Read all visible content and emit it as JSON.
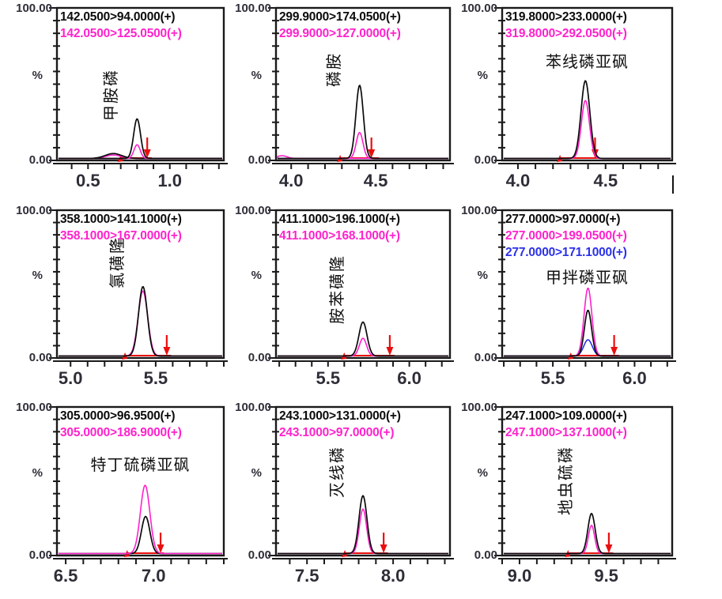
{
  "page": {
    "background": "#ffffff"
  },
  "axis_labels": {
    "top": "100.00",
    "mid": "%",
    "bottom": "0.00"
  },
  "colors": {
    "black": "#0b0b0b",
    "magenta": "#ff22cc",
    "blue": "#2b31e8",
    "red": "#ea0f0f",
    "frame": "#1a1a1a",
    "axis_text": "#2e2e38"
  },
  "chart_data": [
    {
      "type": "line",
      "compound": "甲胺磷",
      "compound_orientation": "vertical",
      "transitions": [
        {
          "text": "142.0500>94.0000(+)",
          "color": "black"
        },
        {
          "text": "142.0500>125.0500(+)",
          "color": "magenta"
        }
      ],
      "xmin": 0.31,
      "xmax": 1.33,
      "ylim": [
        0,
        100
      ],
      "major_ticks": [
        {
          "value": 0.5,
          "label": "0.5"
        },
        {
          "value": 1.0,
          "label": "1.0"
        }
      ],
      "minor_tick_step": 0.1,
      "peaks": [
        {
          "color": "magenta",
          "rt": 0.655,
          "height_pct": 2.2,
          "sigma": 0.05
        },
        {
          "color": "black",
          "rt": 0.655,
          "height_pct": 3.2,
          "sigma": 0.05
        },
        {
          "color": "magenta",
          "rt": 0.8,
          "height_pct": 9,
          "sigma": 0.019
        },
        {
          "color": "black",
          "rt": 0.8,
          "height_pct": 26,
          "sigma": 0.021
        }
      ],
      "baseline": {
        "start": 0.7,
        "end": 0.89
      },
      "arrow_rt": 0.862
    },
    {
      "type": "line",
      "compound": "磷胺",
      "compound_orientation": "vertical",
      "transitions": [
        {
          "text": "299.9000>174.0500(+)",
          "color": "black"
        },
        {
          "text": "299.9000>127.0000(+)",
          "color": "magenta"
        }
      ],
      "xmin": 3.91,
      "xmax": 4.94,
      "ylim": [
        0,
        100
      ],
      "major_ticks": [
        {
          "value": 4.0,
          "label": "4.0"
        },
        {
          "value": 4.5,
          "label": "4.5"
        }
      ],
      "minor_tick_step": 0.1,
      "peaks": [
        {
          "color": "magenta",
          "rt": 3.945,
          "height_pct": 1.8,
          "sigma": 0.03
        },
        {
          "color": "magenta",
          "rt": 4.405,
          "height_pct": 17,
          "sigma": 0.02
        },
        {
          "color": "black",
          "rt": 4.405,
          "height_pct": 48,
          "sigma": 0.022
        }
      ],
      "baseline": {
        "start": 4.29,
        "end": 4.52
      },
      "arrow_rt": 4.475
    },
    {
      "type": "line",
      "compound": "苯线磷亚砜",
      "compound_orientation": "horizontal",
      "name_y_frac": 0.32,
      "transitions": [
        {
          "text": "319.8000>233.0000(+)",
          "color": "black"
        },
        {
          "text": "319.8000>292.0500(+)",
          "color": "magenta"
        }
      ],
      "xmin": 3.91,
      "xmax": 4.88,
      "ylim": [
        0,
        100
      ],
      "major_ticks": [
        {
          "value": 4.0,
          "label": "4.0"
        },
        {
          "value": 4.5,
          "label": "4.5"
        }
      ],
      "minor_tick_step": 0.1,
      "peaks": [
        {
          "color": "magenta",
          "rt": 4.385,
          "height_pct": 38,
          "sigma": 0.023
        },
        {
          "color": "black",
          "rt": 4.385,
          "height_pct": 51,
          "sigma": 0.025
        }
      ],
      "baseline": {
        "start": 4.24,
        "end": 4.46
      },
      "arrow_rt": 4.44
    },
    {
      "type": "line",
      "compound": "氯磺隆",
      "compound_orientation": "vertical",
      "transitions": [
        {
          "text": "358.1000>141.1000(+)",
          "color": "black"
        },
        {
          "text": "358.1000>167.0000(+)",
          "color": "magenta"
        }
      ],
      "xmin": 4.92,
      "xmax": 5.9,
      "ylim": [
        0,
        100
      ],
      "major_ticks": [
        {
          "value": 5.0,
          "label": "5.0"
        },
        {
          "value": 5.5,
          "label": "5.5"
        }
      ],
      "minor_tick_step": 0.1,
      "peaks": [
        {
          "color": "magenta",
          "rt": 5.425,
          "height_pct": 44,
          "sigma": 0.028
        },
        {
          "color": "black",
          "rt": 5.425,
          "height_pct": 47,
          "sigma": 0.026
        }
      ],
      "baseline": {
        "start": 5.32,
        "end": 5.59
      },
      "arrow_rt": 5.565
    },
    {
      "type": "line",
      "compound": "胺苯磺隆",
      "compound_orientation": "vertical",
      "transitions": [
        {
          "text": "411.1000>196.1000(+)",
          "color": "black"
        },
        {
          "text": "411.1000>168.1000(+)",
          "color": "magenta"
        }
      ],
      "xmin": 5.18,
      "xmax": 6.25,
      "ylim": [
        0,
        100
      ],
      "major_ticks": [
        {
          "value": 5.5,
          "label": "5.5"
        },
        {
          "value": 6.0,
          "label": "6.0"
        }
      ],
      "minor_tick_step": 0.1,
      "peaks": [
        {
          "color": "magenta",
          "rt": 5.715,
          "height_pct": 12,
          "sigma": 0.022
        },
        {
          "color": "black",
          "rt": 5.715,
          "height_pct": 23,
          "sigma": 0.025
        }
      ],
      "baseline": {
        "start": 5.6,
        "end": 5.91
      },
      "arrow_rt": 5.88
    },
    {
      "type": "line",
      "compound": "甲拌磷亚砜",
      "compound_orientation": "horizontal",
      "name_y_frac": 0.42,
      "transitions": [
        {
          "text": "277.0000>97.0000(+)",
          "color": "black"
        },
        {
          "text": "277.0000>199.0500(+)",
          "color": "magenta"
        },
        {
          "text": "277.0000>171.1000(+)",
          "color": "blue"
        }
      ],
      "xmin": 5.19,
      "xmax": 6.23,
      "ylim": [
        0,
        100
      ],
      "major_ticks": [
        {
          "value": 5.5,
          "label": "5.5"
        },
        {
          "value": 6.0,
          "label": "6.0"
        }
      ],
      "minor_tick_step": 0.1,
      "peaks": [
        {
          "color": "blue",
          "rt": 5.715,
          "height_pct": 11,
          "sigma": 0.026
        },
        {
          "color": "magenta",
          "rt": 5.715,
          "height_pct": 46,
          "sigma": 0.024
        },
        {
          "color": "black",
          "rt": 5.715,
          "height_pct": 31,
          "sigma": 0.022
        }
      ],
      "baseline": {
        "start": 5.61,
        "end": 5.905
      },
      "arrow_rt": 5.875
    },
    {
      "type": "line",
      "compound": "特丁硫磷亚砜",
      "compound_orientation": "horizontal",
      "name_y_frac": 0.355,
      "transitions": [
        {
          "text": "305.0000>96.9500(+)",
          "color": "black"
        },
        {
          "text": "305.0000>186.9000(+)",
          "color": "magenta"
        }
      ],
      "xmin": 6.45,
      "xmax": 7.4,
      "ylim": [
        0,
        100
      ],
      "major_ticks": [
        {
          "value": 6.5,
          "label": "6.5"
        },
        {
          "value": 7.0,
          "label": "7.0"
        }
      ],
      "minor_tick_step": 0.1,
      "peaks": [
        {
          "color": "black",
          "rt": 6.955,
          "height_pct": 25,
          "sigma": 0.024
        },
        {
          "color": "magenta",
          "rt": 6.952,
          "height_pct": 46,
          "sigma": 0.027
        }
      ],
      "baseline": {
        "start": 6.85,
        "end": 7.06
      },
      "arrow_rt": 7.04
    },
    {
      "type": "line",
      "compound": "灭线磷",
      "compound_orientation": "vertical",
      "transitions": [
        {
          "text": "243.1000>131.0000(+)",
          "color": "black"
        },
        {
          "text": "243.1000>97.0000(+)",
          "color": "magenta"
        }
      ],
      "xmin": 7.32,
      "xmax": 8.33,
      "ylim": [
        0,
        100
      ],
      "major_ticks": [
        {
          "value": 7.5,
          "label": "7.5"
        },
        {
          "value": 8.0,
          "label": "8.0"
        }
      ],
      "minor_tick_step": 0.1,
      "peaks": [
        {
          "color": "magenta",
          "rt": 7.825,
          "height_pct": 30,
          "sigma": 0.021
        },
        {
          "color": "black",
          "rt": 7.825,
          "height_pct": 39,
          "sigma": 0.023
        }
      ],
      "baseline": {
        "start": 7.72,
        "end": 7.97
      },
      "arrow_rt": 7.945
    },
    {
      "type": "line",
      "compound": "地虫硫磷",
      "compound_orientation": "vertical",
      "transitions": [
        {
          "text": "247.1000>109.0000(+)",
          "color": "black"
        },
        {
          "text": "247.1000>137.1000(+)",
          "color": "magenta"
        }
      ],
      "xmin": 8.9,
      "xmax": 9.88,
      "ylim": [
        0,
        100
      ],
      "major_ticks": [
        {
          "value": 9.0,
          "label": "9.0"
        },
        {
          "value": 9.5,
          "label": "9.5"
        }
      ],
      "minor_tick_step": 0.1,
      "peaks": [
        {
          "color": "magenta",
          "rt": 9.415,
          "height_pct": 19,
          "sigma": 0.018
        },
        {
          "color": "black",
          "rt": 9.415,
          "height_pct": 27,
          "sigma": 0.021
        }
      ],
      "baseline": {
        "start": 9.28,
        "end": 9.54
      },
      "arrow_rt": 9.515
    }
  ]
}
